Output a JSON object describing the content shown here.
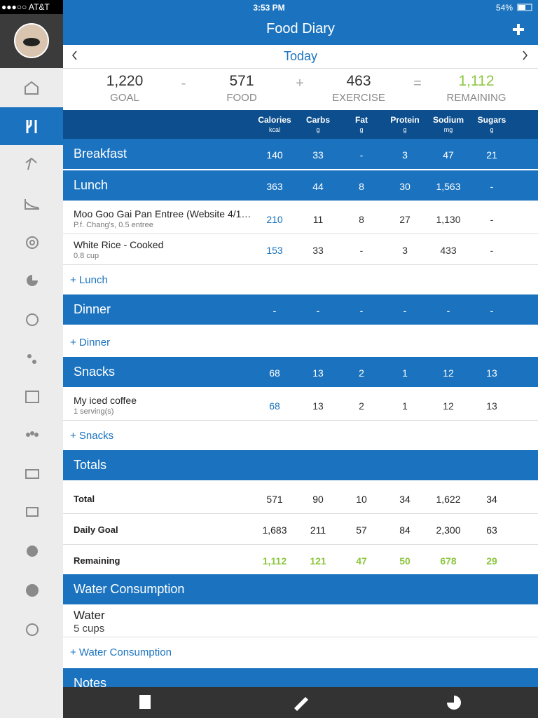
{
  "status_bar": {
    "carrier": "●●●○○ AT&T",
    "time": "3:53 PM",
    "battery": "54%"
  },
  "header": {
    "title": "Food Diary",
    "date": "Today"
  },
  "summary": {
    "items": [
      {
        "value": "1,220",
        "label": "GOAL"
      },
      {
        "value": "571",
        "label": "FOOD"
      },
      {
        "value": "463",
        "label": "EXERCISE"
      },
      {
        "value": "1,112",
        "label": "REMAINING"
      }
    ],
    "operators": [
      "-",
      "+",
      "="
    ]
  },
  "columns": [
    {
      "name": "Calories",
      "unit": "kcal"
    },
    {
      "name": "Carbs",
      "unit": "g"
    },
    {
      "name": "Fat",
      "unit": "g"
    },
    {
      "name": "Protein",
      "unit": "g"
    },
    {
      "name": "Sodium",
      "unit": "mg"
    },
    {
      "name": "Sugars",
      "unit": "g"
    }
  ],
  "meals": [
    {
      "title": "Breakfast",
      "totals": [
        "140",
        "33",
        "-",
        "3",
        "47",
        "21"
      ],
      "entries": []
    },
    {
      "title": "Lunch",
      "totals": [
        "363",
        "44",
        "8",
        "30",
        "1,563",
        "-"
      ],
      "entries": [
        {
          "name": "Moo Goo Gai Pan Entree (Website 4/1…",
          "detail": "P.f. Chang's, 0.5 entree",
          "values": [
            "210",
            "11",
            "8",
            "27",
            "1,130",
            "-"
          ]
        },
        {
          "name": "White Rice - Cooked",
          "detail": "0.8 cup",
          "values": [
            "153",
            "33",
            "-",
            "3",
            "433",
            "-"
          ]
        }
      ],
      "add_link": "+ Lunch"
    },
    {
      "title": "Dinner",
      "totals": [
        "-",
        "-",
        "-",
        "-",
        "-",
        "-"
      ],
      "entries": [],
      "add_link": "+ Dinner"
    },
    {
      "title": "Snacks",
      "totals": [
        "68",
        "13",
        "2",
        "1",
        "12",
        "13"
      ],
      "entries": [
        {
          "name": "My iced coffee",
          "detail": "1 serving(s)",
          "values": [
            "68",
            "13",
            "2",
            "1",
            "12",
            "13"
          ]
        }
      ],
      "add_link": "+ Snacks"
    }
  ],
  "totals": {
    "title": "Totals",
    "rows": [
      {
        "label": "Total",
        "values": [
          "571",
          "90",
          "10",
          "34",
          "1,622",
          "34"
        ]
      },
      {
        "label": "Daily Goal",
        "values": [
          "1,683",
          "211",
          "57",
          "84",
          "2,300",
          "63"
        ]
      },
      {
        "label": "Remaining",
        "values": [
          "1,112",
          "121",
          "47",
          "50",
          "678",
          "29"
        ]
      }
    ]
  },
  "water": {
    "title": "Water Consumption",
    "label": "Water",
    "amount": "5 cups",
    "add_link": "+ Water Consumption"
  },
  "notes": {
    "title": "Notes"
  }
}
